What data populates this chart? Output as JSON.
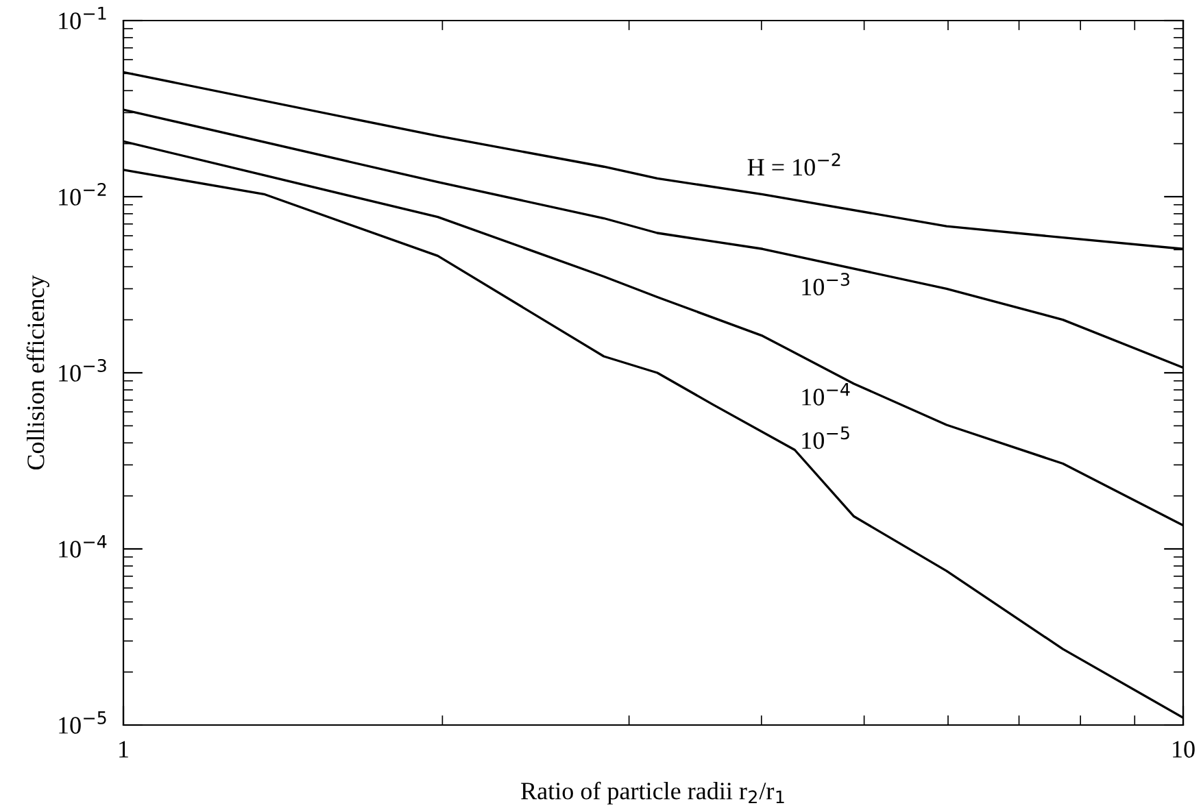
{
  "chart_data": {
    "type": "line",
    "xlabel": "Ratio of particle radii r$_{2}$/r$_{1}$",
    "ylabel": "Collision efficiency",
    "log": "xy",
    "grid": false,
    "legend": false,
    "marker": "none",
    "line_style": "solid",
    "xlim": [
      1,
      10
    ],
    "xticks": [
      1,
      10
    ],
    "ylim": [
      1e-05,
      0.1
    ],
    "yticks": [
      {
        "value": 1e-05,
        "label": "10$^{−5}$"
      },
      {
        "value": 0.0001,
        "label": "10$^{−4}$"
      },
      {
        "value": 0.001,
        "label": "10$^{−3}$"
      },
      {
        "value": 0.01,
        "label": "10$^{−2}$"
      },
      {
        "value": 0.1,
        "label": "10$^{−1}$"
      }
    ],
    "series": [
      {
        "name": "H = 10$^{−2}$",
        "color": "#000000",
        "x": [
          1,
          1.98,
          2.84,
          3.19,
          4.01,
          5.98,
          7.7,
          10
        ],
        "values": [
          0.0509,
          0.0221,
          0.0148,
          0.0127,
          0.0103,
          0.0068,
          0.00586,
          0.00505
        ]
      },
      {
        "name": "10$^{−3}$",
        "color": "#000000",
        "x": [
          1,
          1.98,
          2.84,
          3.19,
          4.01,
          5.98,
          7.7,
          10
        ],
        "values": [
          0.0312,
          0.0121,
          0.00754,
          0.00622,
          0.00505,
          0.003,
          0.002,
          0.00107
        ]
      },
      {
        "name": "10$^{−4}$",
        "color": "#000000",
        "x": [
          1,
          1.98,
          2.84,
          3.19,
          4.01,
          4.89,
          5.98,
          7.7,
          10
        ],
        "values": [
          0.0206,
          0.00767,
          0.00352,
          0.00269,
          0.00162,
          0.000867,
          0.000506,
          0.000305,
          0.000136
        ]
      },
      {
        "name": "10$^{−5}$",
        "color": "#000000",
        "x": [
          1,
          1.36,
          1.98,
          2.84,
          3.19,
          3.6,
          4.3,
          4.89,
          5.98,
          7.7,
          10
        ],
        "values": [
          0.0142,
          0.0103,
          0.00461,
          0.00124,
          0.001,
          0.00066,
          0.000365,
          0.000153,
          7.5e-05,
          2.7e-05,
          1.1e-05
        ]
      }
    ]
  }
}
